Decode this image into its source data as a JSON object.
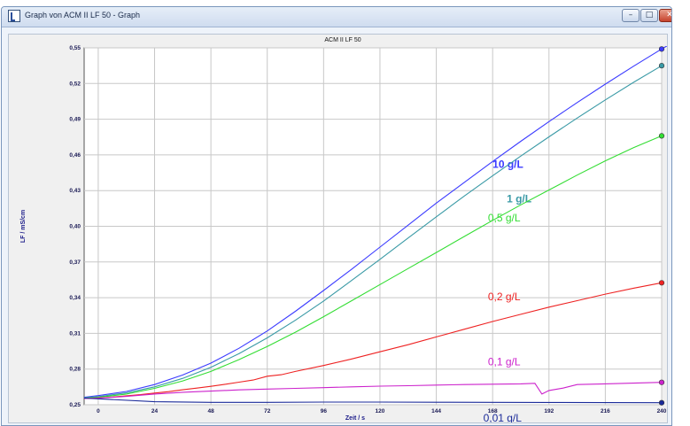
{
  "window": {
    "title": "Graph von ACM II LF 50 - Graph",
    "min_glyph": "–",
    "max_glyph": "□",
    "close_glyph": "✕"
  },
  "chart_data": {
    "type": "line",
    "title": "ACM II LF 50",
    "xlabel": "Zeit / s",
    "ylabel": "LF / mS/cm",
    "xlim": [
      -6,
      240
    ],
    "ylim": [
      0.25,
      0.55
    ],
    "x_ticks": [
      0,
      24,
      48,
      72,
      96,
      120,
      144,
      168,
      192,
      216,
      240
    ],
    "y_ticks": [
      "0,25",
      "0,28",
      "0,31",
      "0,34",
      "0,37",
      "0,40",
      "0,43",
      "0,46",
      "0,49",
      "0,52",
      "0,55"
    ],
    "y_tick_values": [
      0.25,
      0.28,
      0.31,
      0.34,
      0.37,
      0.4,
      0.43,
      0.46,
      0.49,
      0.52,
      0.55
    ],
    "grid": true,
    "series": [
      {
        "name": "10 g/L",
        "color": "#3b3bff",
        "bold": true,
        "label_at": [
          168,
          0.449
        ],
        "x": [
          -6,
          0,
          12,
          24,
          36,
          48,
          60,
          72,
          84,
          96,
          108,
          120,
          132,
          144,
          156,
          168,
          180,
          192,
          204,
          216,
          228,
          240,
          250
        ],
        "values": [
          0.2563,
          0.2577,
          0.2612,
          0.267,
          0.275,
          0.285,
          0.2975,
          0.312,
          0.3285,
          0.346,
          0.364,
          0.3825,
          0.401,
          0.4195,
          0.437,
          0.4545,
          0.4715,
          0.488,
          0.504,
          0.5195,
          0.5345,
          0.549,
          0.5605
        ]
      },
      {
        "name": "1 g/L",
        "color": "#3a9aa6",
        "bold": true,
        "label_at": [
          174,
          0.42
        ],
        "x": [
          -6,
          0,
          12,
          24,
          36,
          48,
          60,
          72,
          84,
          96,
          108,
          120,
          132,
          144,
          156,
          168,
          180,
          192,
          204,
          216,
          228,
          240
        ],
        "values": [
          0.2558,
          0.2568,
          0.26,
          0.265,
          0.2722,
          0.2815,
          0.293,
          0.3062,
          0.321,
          0.3372,
          0.3545,
          0.3722,
          0.3902,
          0.408,
          0.4255,
          0.4425,
          0.459,
          0.4752,
          0.491,
          0.5062,
          0.521,
          0.535
        ]
      },
      {
        "name": "0,5 g/L",
        "color": "#33dd33",
        "bold": false,
        "label_at": [
          166,
          0.404
        ],
        "x": [
          -6,
          0,
          12,
          24,
          36,
          48,
          60,
          72,
          84,
          96,
          108,
          120,
          132,
          144,
          156,
          168,
          180,
          192,
          204,
          216,
          228,
          240
        ],
        "values": [
          0.2555,
          0.2562,
          0.259,
          0.2638,
          0.27,
          0.278,
          0.288,
          0.299,
          0.311,
          0.324,
          0.3375,
          0.351,
          0.3645,
          0.378,
          0.3915,
          0.405,
          0.418,
          0.4305,
          0.443,
          0.455,
          0.466,
          0.476
        ]
      },
      {
        "name": "0,2 g/L",
        "color": "#ee2222",
        "bold": false,
        "label_at": [
          166,
          0.338
        ],
        "x": [
          -6,
          0,
          6,
          12,
          18,
          24,
          30,
          36,
          42,
          48,
          54,
          60,
          66,
          72,
          78,
          84,
          96,
          108,
          120,
          132,
          144,
          156,
          168,
          180,
          192,
          204,
          216,
          228,
          240
        ],
        "values": [
          0.2553,
          0.2557,
          0.2565,
          0.2575,
          0.2585,
          0.2598,
          0.261,
          0.2626,
          0.264,
          0.2655,
          0.2672,
          0.269,
          0.2708,
          0.274,
          0.2752,
          0.278,
          0.283,
          0.2885,
          0.2945,
          0.3005,
          0.307,
          0.3135,
          0.32,
          0.326,
          0.332,
          0.3375,
          0.343,
          0.348,
          0.3525
        ]
      },
      {
        "name": "0,1 g/L",
        "color": "#cc22cc",
        "bold": false,
        "label_at": [
          166,
          0.283
        ],
        "x": [
          -6,
          0,
          12,
          24,
          36,
          48,
          60,
          72,
          84,
          96,
          108,
          120,
          132,
          144,
          156,
          168,
          180,
          186,
          189,
          192,
          198,
          204,
          216,
          228,
          240
        ],
        "values": [
          0.2552,
          0.2556,
          0.257,
          0.259,
          0.2605,
          0.2615,
          0.2625,
          0.2632,
          0.2638,
          0.2644,
          0.265,
          0.2656,
          0.266,
          0.2665,
          0.267,
          0.2673,
          0.2676,
          0.268,
          0.259,
          0.262,
          0.264,
          0.267,
          0.2676,
          0.2682,
          0.2688
        ]
      },
      {
        "name": "0,01 g/L",
        "color": "#1a2a99",
        "bold": false,
        "label_at": [
          164,
          0.236
        ],
        "x": [
          -6,
          0,
          24,
          48,
          72,
          96,
          120,
          144,
          168,
          192,
          216,
          240
        ],
        "values": [
          0.2556,
          0.255,
          0.2525,
          0.252,
          0.252,
          0.2522,
          0.2522,
          0.2521,
          0.252,
          0.2519,
          0.2518,
          0.2517
        ]
      }
    ]
  }
}
